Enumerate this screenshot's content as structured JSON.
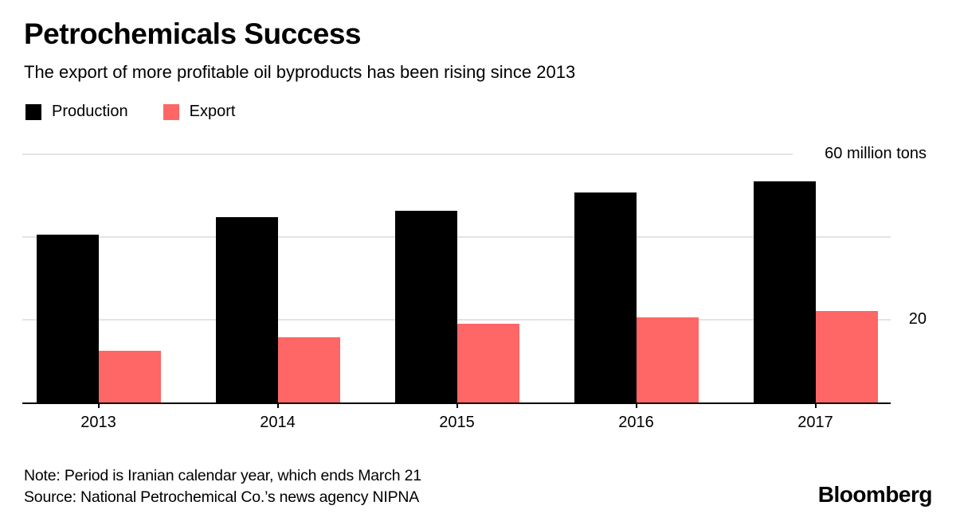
{
  "header": {
    "title": "Petrochemicals Success",
    "subtitle": "The export of more profitable oil byproducts has been rising since 2013"
  },
  "legend": [
    {
      "label": "Production",
      "color": "#000000"
    },
    {
      "label": "Export",
      "color": "#ff6666"
    }
  ],
  "chart_data": {
    "type": "bar",
    "categories": [
      "2013",
      "2014",
      "2015",
      "2016",
      "2017"
    ],
    "series": [
      {
        "name": "Production",
        "color": "#000000",
        "values": [
          40.5,
          44.8,
          46.4,
          50.8,
          53.5
        ]
      },
      {
        "name": "Export",
        "color": "#ff6666",
        "values": [
          12.5,
          15.8,
          19.0,
          20.5,
          22.2
        ]
      }
    ],
    "unit": "million tons",
    "ylim": [
      0,
      60
    ],
    "grid": true,
    "gridline_color": "#e3e3e3",
    "gridlines": [
      {
        "value": 60,
        "label": "60 million tons",
        "short": true
      },
      {
        "value": 40,
        "label": "",
        "short": false
      },
      {
        "value": 20,
        "label": "20",
        "short": false
      }
    ],
    "legend_position": "top-left"
  },
  "footer": {
    "note": "Note: Period is Iranian calendar year, which ends March 21",
    "source": "Source: National Petrochemical Co.’s news agency NIPNA",
    "brand": "Bloomberg"
  }
}
